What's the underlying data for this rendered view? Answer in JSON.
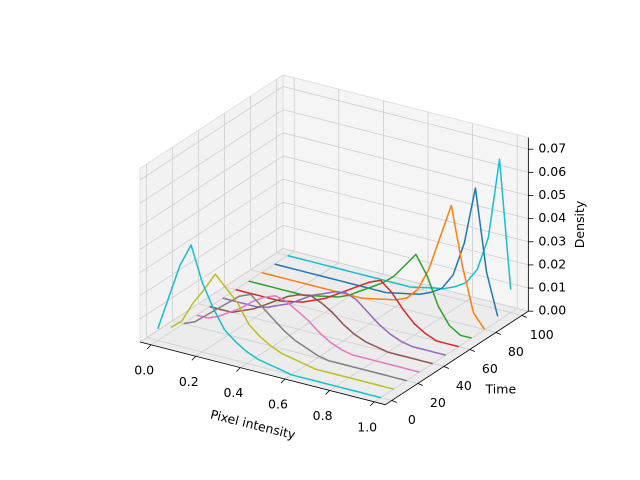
{
  "chart_data": {
    "type": "line3d",
    "xlabel": "Pixel intensity",
    "ylabel": "Time",
    "zlabel": "Density",
    "xlim": [
      -0.05,
      1.05
    ],
    "ylim": [
      -5,
      105
    ],
    "zlim": [
      0,
      0.075
    ],
    "xticks": [
      {
        "value": 0,
        "label": "0.0"
      },
      0.2,
      0.4,
      0.6,
      0.8,
      {
        "value": 1,
        "label": "1.0"
      }
    ],
    "yticks": [
      0,
      20,
      40,
      60,
      80,
      100
    ],
    "zticks": [
      {
        "value": 0,
        "label": "0.00"
      },
      {
        "value": 0.01,
        "label": "0.01"
      },
      {
        "value": 0.02,
        "label": "0.02"
      },
      {
        "value": 0.03,
        "label": "0.03"
      },
      {
        "value": 0.04,
        "label": "0.04"
      },
      {
        "value": 0.05,
        "label": "0.05"
      },
      {
        "value": 0.06,
        "label": "0.06"
      },
      {
        "value": 0.07,
        "label": "0.07"
      }
    ],
    "grid": true,
    "x": [
      0,
      0.05,
      0.1,
      0.15,
      0.2,
      0.25,
      0.3,
      0.35,
      0.4,
      0.45,
      0.5,
      0.55,
      0.6,
      0.65,
      0.7,
      0.75,
      0.8,
      0.85,
      0.9,
      0.95,
      1.0
    ],
    "series": [
      {
        "time": 0,
        "color": "#17becf",
        "values": [
          0.005,
          0.02,
          0.035,
          0.045,
          0.03,
          0.02,
          0.012,
          0.008,
          0.005,
          0.003,
          0.002,
          0.001,
          0,
          0,
          0,
          0,
          0,
          0,
          0,
          0,
          0
        ]
      },
      {
        "time": 10,
        "color": "#bcbd22",
        "values": [
          0.002,
          0.006,
          0.015,
          0.022,
          0.03,
          0.025,
          0.02,
          0.012,
          0.008,
          0.005,
          0.003,
          0.002,
          0.001,
          0,
          0,
          0,
          0,
          0,
          0,
          0,
          0
        ]
      },
      {
        "time": 20,
        "color": "#7f7f7f",
        "values": [
          0,
          0.002,
          0.006,
          0.01,
          0.014,
          0.018,
          0.02,
          0.016,
          0.012,
          0.008,
          0.005,
          0.003,
          0.001,
          0,
          0,
          0,
          0,
          0,
          0,
          0,
          0
        ]
      },
      {
        "time": 30,
        "color": "#e377c2",
        "values": [
          0,
          0,
          0.002,
          0.005,
          0.008,
          0.012,
          0.015,
          0.017,
          0.016,
          0.013,
          0.01,
          0.006,
          0.003,
          0.001,
          0,
          0,
          0,
          0,
          0,
          0,
          0
        ]
      },
      {
        "time": 40,
        "color": "#8c564b",
        "values": [
          0,
          0,
          0,
          0.002,
          0.004,
          0.007,
          0.01,
          0.013,
          0.015,
          0.016,
          0.014,
          0.011,
          0.007,
          0.004,
          0.002,
          0.001,
          0,
          0,
          0,
          0,
          0
        ]
      },
      {
        "time": 50,
        "color": "#9467bd",
        "values": [
          0,
          0,
          0,
          0,
          0.001,
          0.003,
          0.005,
          0.008,
          0.011,
          0.013,
          0.015,
          0.016,
          0.014,
          0.01,
          0.006,
          0.003,
          0.001,
          0,
          0,
          0,
          0
        ]
      },
      {
        "time": 60,
        "color": "#d62728",
        "values": [
          0,
          0,
          0,
          0,
          0,
          0.001,
          0.002,
          0.004,
          0.006,
          0.009,
          0.012,
          0.015,
          0.018,
          0.02,
          0.016,
          0.01,
          0.005,
          0.002,
          0,
          0,
          0
        ]
      },
      {
        "time": 70,
        "color": "#2ca02c",
        "values": [
          0,
          0,
          0,
          0,
          0,
          0,
          0.001,
          0.002,
          0.003,
          0.005,
          0.008,
          0.011,
          0.014,
          0.018,
          0.024,
          0.03,
          0.022,
          0.01,
          0.003,
          0,
          0
        ]
      },
      {
        "time": 80,
        "color": "#ff7f0e",
        "values": [
          0,
          0,
          0,
          0,
          0,
          0,
          0,
          0,
          0,
          0,
          0.001,
          0.002,
          0.003,
          0.005,
          0.01,
          0.02,
          0.035,
          0.05,
          0.025,
          0.006,
          0
        ]
      },
      {
        "time": 90,
        "color": "#1f77b4",
        "values": [
          0,
          0,
          0,
          0,
          0,
          0,
          0,
          0,
          0,
          0,
          0,
          0.001,
          0.002,
          0.003,
          0.005,
          0.008,
          0.015,
          0.03,
          0.055,
          0.02,
          0.002
        ]
      },
      {
        "time": 100,
        "color": "#17becf",
        "values": [
          0,
          0,
          0,
          0,
          0,
          0,
          0,
          0,
          0,
          0,
          0,
          0,
          0.001,
          0.002,
          0.003,
          0.005,
          0.008,
          0.015,
          0.03,
          0.065,
          0.01
        ]
      }
    ]
  }
}
